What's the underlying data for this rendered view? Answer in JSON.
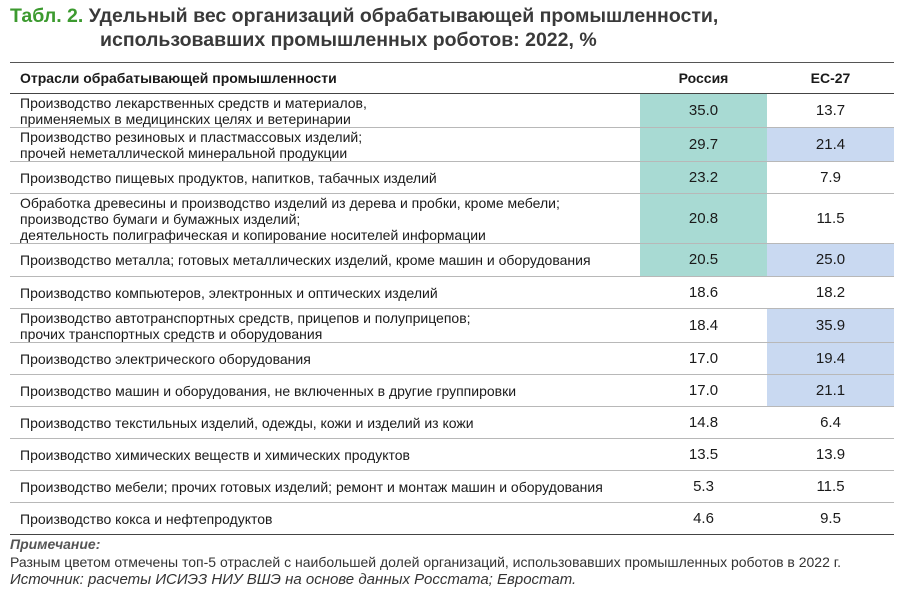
{
  "title": {
    "number": "Табл. 2.",
    "line1": "Удельный вес организаций обрабатывающей промышленности,",
    "line2": "использовавших промышленных роботов: 2022, %"
  },
  "table": {
    "headers": {
      "industry": "Отрасли обрабатывающей промышленности",
      "russia": "Россия",
      "eu": "ЕС-27"
    },
    "rows": [
      {
        "lines": [
          "Производство лекарственных средств и материалов,",
          "применяемых в медицинских целях и ветеринарии"
        ],
        "russia": "35.0",
        "eu": "13.7",
        "ru_hl": true,
        "eu_hl": false
      },
      {
        "lines": [
          "Производство резиновых и пластмассовых изделий;",
          "прочей неметаллической минеральной продукции"
        ],
        "russia": "29.7",
        "eu": "21.4",
        "ru_hl": true,
        "eu_hl": true
      },
      {
        "lines": [
          "Производство пищевых продуктов, напитков, табачных изделий"
        ],
        "russia": "23.2",
        "eu": "7.9",
        "ru_hl": true,
        "eu_hl": false
      },
      {
        "lines": [
          "Обработка древесины и производство изделий из дерева и пробки, кроме мебели;",
          "производство бумаги и бумажных изделий;",
          "деятельность полиграфическая и копирование носителей информации"
        ],
        "russia": "20.8",
        "eu": "11.5",
        "ru_hl": true,
        "eu_hl": false
      },
      {
        "lines": [
          "Производство металла; готовых металлических изделий, кроме машин и оборудования"
        ],
        "russia": "20.5",
        "eu": "25.0",
        "ru_hl": true,
        "eu_hl": true
      },
      {
        "lines": [
          "Производство компьютеров, электронных и оптических изделий"
        ],
        "russia": "18.6",
        "eu": "18.2",
        "ru_hl": false,
        "eu_hl": false
      },
      {
        "lines": [
          "Производство автотранспортных средств, прицепов и полуприцепов;",
          "прочих транспортных средств и оборудования"
        ],
        "russia": "18.4",
        "eu": "35.9",
        "ru_hl": false,
        "eu_hl": true
      },
      {
        "lines": [
          "Производство электрического оборудования"
        ],
        "russia": "17.0",
        "eu": "19.4",
        "ru_hl": false,
        "eu_hl": true
      },
      {
        "lines": [
          "Производство машин и оборудования, не включенных в другие группировки"
        ],
        "russia": "17.0",
        "eu": "21.1",
        "ru_hl": false,
        "eu_hl": true
      },
      {
        "lines": [
          "Производство текстильных изделий, одежды, кожи и изделий из кожи"
        ],
        "russia": "14.8",
        "eu": "6.4",
        "ru_hl": false,
        "eu_hl": false
      },
      {
        "lines": [
          "Производство химических веществ и химических продуктов"
        ],
        "russia": "13.5",
        "eu": "13.9",
        "ru_hl": false,
        "eu_hl": false
      },
      {
        "lines": [
          "Производство мебели; прочих готовых изделий; ремонт и монтаж машин и оборудования"
        ],
        "russia": "5.3",
        "eu": "11.5",
        "ru_hl": false,
        "eu_hl": false
      },
      {
        "lines": [
          "Производство кокса и нефтепродуктов"
        ],
        "russia": "4.6",
        "eu": "9.5",
        "ru_hl": false,
        "eu_hl": false
      }
    ]
  },
  "notes": {
    "heading": "Примечание",
    "text": "Разным цветом отмечены топ-5 отраслей с наибольшей долей организаций, использовавших промышленных роботов в 2022 г.",
    "source": "Источник: расчеты ИСИЭЗ НИУ ВШЭ на основе данных Росстата; Евростат."
  },
  "colors": {
    "title_number": "#3c9a2f",
    "russia_highlight": "#a8dad3",
    "eu_highlight": "#c9d9f1"
  }
}
